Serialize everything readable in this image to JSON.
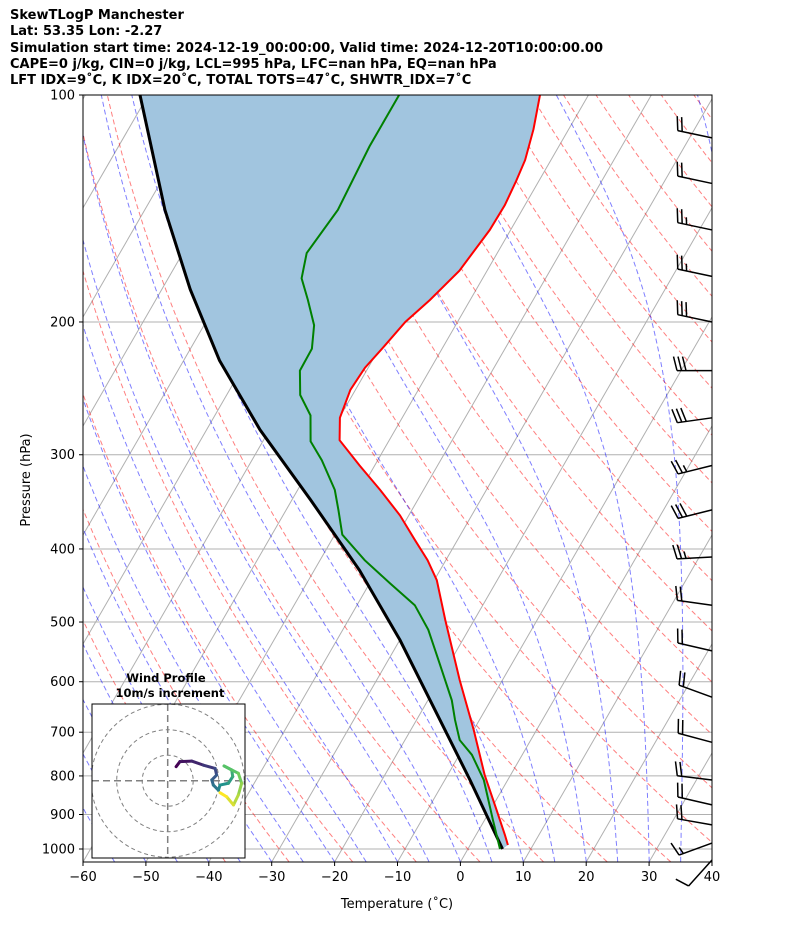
{
  "header": {
    "line1": "SkewTLogP Manchester",
    "line2": "Lat: 53.35   Lon: -2.27",
    "line3": "Simulation start time: 2024-12-19_00:00:00, Valid time: 2024-12-20T10:00:00.00",
    "line4": "CAPE=0 j/kg, CIN=0 j/kg, LCL=995 hPa, LFC=nan hPa, EQ=nan hPa",
    "line5": "LFT IDX=9˚C, K IDX=20˚C, TOTAL TOTS=47˚C, SHWTR_IDX=7˚C"
  },
  "chart_data": {
    "type": "line",
    "subtype": "skew-t log-p",
    "xlabel": "Temperature (˚C)",
    "ylabel": "Pressure (hPa)",
    "xlim": [
      -60,
      40
    ],
    "ylim": [
      1040,
      100
    ],
    "xticks": [
      -60,
      -50,
      -40,
      -30,
      -20,
      -10,
      0,
      10,
      20,
      30,
      40
    ],
    "xtick_labels": [
      "−60",
      "−50",
      "−40",
      "−30",
      "−20",
      "−10",
      "0",
      "10",
      "20",
      "30",
      "40"
    ],
    "yticks": [
      100,
      200,
      300,
      400,
      500,
      600,
      700,
      800,
      900,
      1000
    ],
    "ytick_labels": [
      "100",
      "200",
      "300",
      "400",
      "500",
      "600",
      "700",
      "800",
      "900",
      "1000"
    ],
    "grid": true,
    "colors": {
      "temperature": "#ff0000",
      "dewpoint": "#008000",
      "parcel": "#000000",
      "fill": "#a1c5df",
      "isotherm": "#b0b0b0",
      "dry_adiabat": "#ff0000",
      "moist_adiabat": "#0000ff"
    },
    "series": [
      {
        "name": "temperature",
        "points": [
          [
            988,
            6.0
          ],
          [
            958,
            4.6
          ],
          [
            888,
            1.0
          ],
          [
            798,
            -4.1
          ],
          [
            695,
            -10.0
          ],
          [
            597,
            -16.8
          ],
          [
            497,
            -24.6
          ],
          [
            440,
            -29.6
          ],
          [
            414,
            -32.9
          ],
          [
            389,
            -36.8
          ],
          [
            361,
            -41.4
          ],
          [
            334,
            -46.9
          ],
          [
            310,
            -52.4
          ],
          [
            287,
            -57.9
          ],
          [
            268,
            -59.9
          ],
          [
            246,
            -60.8
          ],
          [
            230,
            -60.5
          ],
          [
            215,
            -59.4
          ],
          [
            200,
            -58.3
          ],
          [
            187,
            -56.4
          ],
          [
            171,
            -54.4
          ],
          [
            151,
            -53.3
          ],
          [
            140,
            -53.2
          ],
          [
            130,
            -53.6
          ],
          [
            122,
            -54.1
          ],
          [
            111,
            -55.6
          ],
          [
            100,
            -57.7
          ]
        ]
      },
      {
        "name": "dewpoint",
        "points": [
          [
            1000,
            5.1
          ],
          [
            915,
            1.3
          ],
          [
            810,
            -3.8
          ],
          [
            750,
            -8.0
          ],
          [
            717,
            -11.3
          ],
          [
            674,
            -13.9
          ],
          [
            635,
            -16.2
          ],
          [
            570,
            -21.3
          ],
          [
            512,
            -26.4
          ],
          [
            475,
            -30.8
          ],
          [
            444,
            -36.8
          ],
          [
            414,
            -42.9
          ],
          [
            383,
            -48.8
          ],
          [
            355,
            -51.7
          ],
          [
            334,
            -54.1
          ],
          [
            305,
            -58.9
          ],
          [
            288,
            -62.4
          ],
          [
            266,
            -64.8
          ],
          [
            250,
            -68.3
          ],
          [
            232,
            -70.6
          ],
          [
            217,
            -70.7
          ],
          [
            202,
            -72.5
          ],
          [
            187,
            -75.8
          ],
          [
            175,
            -78.8
          ],
          [
            162,
            -80.3
          ],
          [
            142,
            -79.3
          ],
          [
            117,
            -80.1
          ],
          [
            100,
            -80.1
          ]
        ]
      },
      {
        "name": "parcel",
        "points": [
          [
            1000,
            5.5
          ],
          [
            810,
            -6.0
          ],
          [
            674,
            -16.3
          ],
          [
            528,
            -30.0
          ],
          [
            427,
            -42.8
          ],
          [
            344,
            -57.1
          ],
          [
            278,
            -71.5
          ],
          [
            225,
            -84.3
          ],
          [
            181,
            -95.5
          ],
          [
            142,
            -106.8
          ],
          [
            100,
            -121.3
          ]
        ]
      }
    ],
    "wind_barbs": [
      {
        "p": 114,
        "dir": 282,
        "kt": 20
      },
      {
        "p": 131,
        "dir": 282,
        "kt": 20
      },
      {
        "p": 151,
        "dir": 282,
        "kt": 25
      },
      {
        "p": 174,
        "dir": 282,
        "kt": 25
      },
      {
        "p": 200,
        "dir": 282,
        "kt": 30
      },
      {
        "p": 232,
        "dir": 270,
        "kt": 30
      },
      {
        "p": 268,
        "dir": 262,
        "kt": 30
      },
      {
        "p": 310,
        "dir": 256,
        "kt": 25
      },
      {
        "p": 355,
        "dir": 256,
        "kt": 30
      },
      {
        "p": 410,
        "dir": 267,
        "kt": 25
      },
      {
        "p": 475,
        "dir": 278,
        "kt": 20
      },
      {
        "p": 546,
        "dir": 283,
        "kt": 20
      },
      {
        "p": 629,
        "dir": 290,
        "kt": 20
      },
      {
        "p": 722,
        "dir": 285,
        "kt": 20
      },
      {
        "p": 810,
        "dir": 277,
        "kt": 20
      },
      {
        "p": 874,
        "dir": 283,
        "kt": 20
      },
      {
        "p": 929,
        "dir": 280,
        "kt": 20
      },
      {
        "p": 982,
        "dir": 250,
        "kt": 15
      },
      {
        "p": 1034,
        "dir": 222,
        "kt": 10
      }
    ],
    "hodograph": {
      "title": "Wind Profile",
      "subtitle": "10m/s increment",
      "rings_ms": [
        10,
        20,
        30
      ],
      "uv_ms": [
        [
          3.3,
          5.5
        ],
        [
          4.8,
          7.5
        ],
        [
          9.4,
          7.7
        ],
        [
          14.0,
          6.1
        ],
        [
          18.6,
          4.8
        ],
        [
          19.2,
          2.2
        ],
        [
          17.3,
          0.3
        ],
        [
          17.9,
          -1.7
        ],
        [
          19.9,
          -3.7
        ],
        [
          20.5,
          -1.7
        ],
        [
          23.8,
          -1.0
        ],
        [
          25.5,
          1.6
        ],
        [
          25.1,
          4.2
        ],
        [
          22.1,
          5.8
        ],
        [
          27.7,
          2.9
        ],
        [
          29.0,
          -1.0
        ],
        [
          27.7,
          -5.6
        ],
        [
          25.8,
          -9.5
        ],
        [
          23.1,
          -6.3
        ],
        [
          20.5,
          -4.7
        ]
      ]
    }
  }
}
